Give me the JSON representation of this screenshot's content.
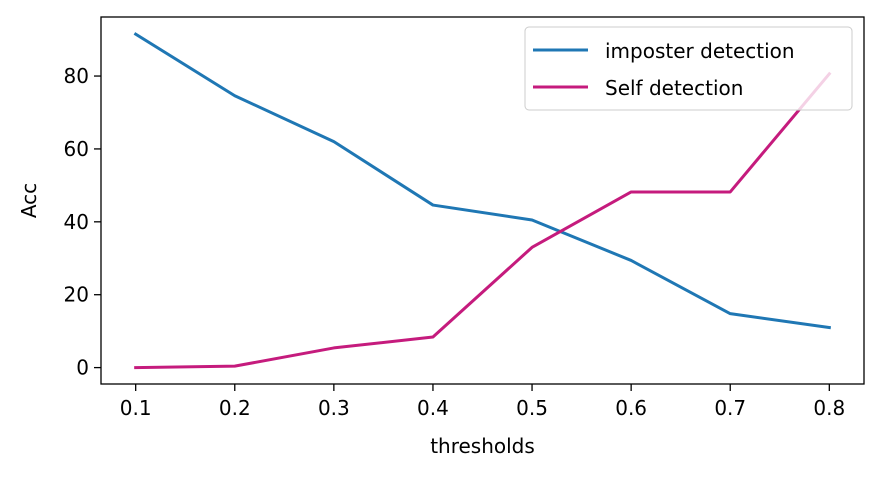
{
  "chart_data": {
    "type": "line",
    "title": "",
    "xlabel": "thresholds",
    "ylabel": "Acc",
    "x": [
      0.1,
      0.2,
      0.3,
      0.4,
      0.5,
      0.6,
      0.7,
      0.8
    ],
    "xticks": [
      "0.1",
      "0.2",
      "0.3",
      "0.4",
      "0.5",
      "0.6",
      "0.7",
      "0.8"
    ],
    "yticks": [
      "0",
      "20",
      "40",
      "60",
      "80"
    ],
    "xlim": [
      0.065,
      0.835
    ],
    "ylim": [
      -4.5,
      96.2
    ],
    "grid": false,
    "legend_position": "top-right",
    "series": [
      {
        "name": "imposter detection",
        "color": "#1f77b4",
        "values": [
          91.5,
          74.6,
          62.0,
          44.6,
          40.5,
          29.4,
          14.8,
          11.0
        ]
      },
      {
        "name": "Self detection",
        "color": "#c51b7d",
        "values": [
          0.0,
          0.4,
          5.4,
          8.4,
          33.0,
          48.2,
          48.2,
          80.6
        ]
      }
    ]
  }
}
